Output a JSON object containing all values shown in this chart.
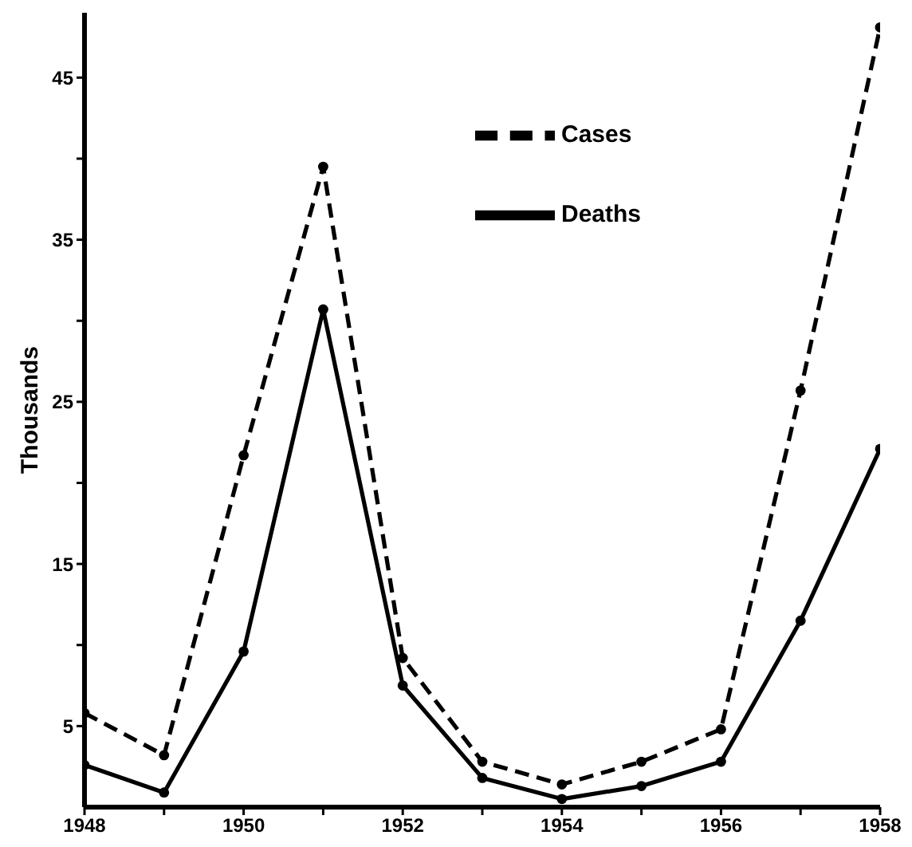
{
  "chart_data": {
    "type": "line",
    "ylabel": "Thousands",
    "x": [
      1948,
      1949,
      1950,
      1951,
      1952,
      1953,
      1954,
      1955,
      1956,
      1957,
      1958
    ],
    "series": [
      {
        "name": "Cases",
        "color": "#000000",
        "line_style": "dashed",
        "values": [
          5.8,
          3.2,
          21.7,
          39.5,
          9.2,
          2.8,
          1.4,
          2.8,
          4.8,
          25.7,
          48.1
        ]
      },
      {
        "name": "Deaths",
        "color": "#000000",
        "line_style": "solid",
        "values": [
          2.6,
          0.9,
          9.6,
          30.7,
          7.5,
          1.8,
          0.5,
          1.3,
          2.8,
          11.5,
          22.1
        ]
      }
    ],
    "xlim": [
      1948,
      1958
    ],
    "xticks": [
      1948,
      {
        "value": 1949,
        "label": null
      },
      1950,
      {
        "value": 1951,
        "label": null
      },
      1952,
      {
        "value": 1953,
        "label": null
      },
      1954,
      {
        "value": 1955,
        "label": null
      },
      1956,
      {
        "value": 1957,
        "label": null
      },
      1958
    ],
    "ylim": [
      0,
      49
    ],
    "yticks": [
      5,
      {
        "value": 10,
        "label": null
      },
      15,
      {
        "value": 20,
        "label": null
      },
      25,
      {
        "value": 30,
        "label": null
      },
      35,
      {
        "value": 40,
        "label": null
      },
      45
    ],
    "marker": "circle",
    "legend": "top right",
    "grid": false
  }
}
